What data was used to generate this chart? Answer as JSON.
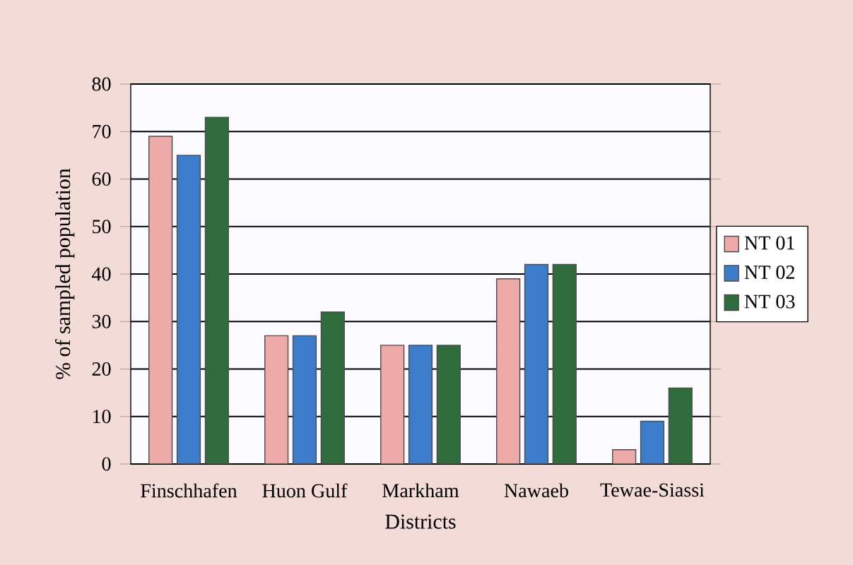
{
  "chart_data": {
    "type": "bar",
    "xlabel": "Districts",
    "ylabel": "% of sampled population",
    "categories": [
      "Finschhafen",
      "Huon Gulf",
      "Markham",
      "Nawaeb",
      "Tewae-Siassi"
    ],
    "series": [
      {
        "name": "NT 01",
        "color": "#eea9a9",
        "values": [
          69,
          27,
          25,
          39,
          3
        ]
      },
      {
        "name": "NT 02",
        "color": "#3d7cc9",
        "values": [
          65,
          27,
          25,
          42,
          9
        ]
      },
      {
        "name": "NT 03",
        "color": "#2f6b3c",
        "values": [
          73,
          32,
          25,
          42,
          16
        ]
      }
    ],
    "ylim": [
      0,
      80
    ],
    "yticks": [
      0,
      10,
      20,
      30,
      40,
      50,
      60,
      70,
      80
    ],
    "grid": "y",
    "legend": "right"
  }
}
